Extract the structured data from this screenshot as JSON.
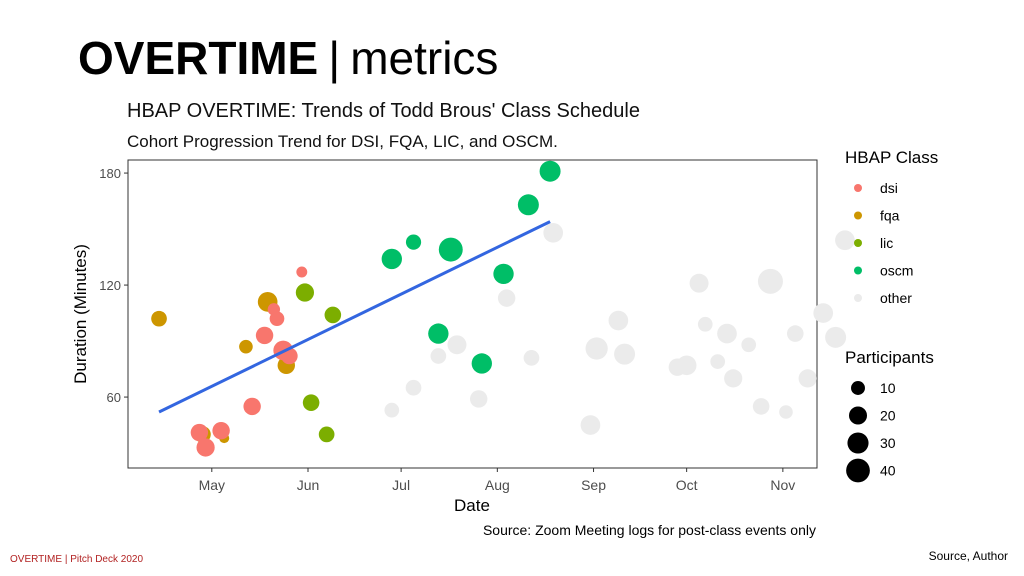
{
  "slide": {
    "title_bold": "OVERTIME",
    "title_separator": "|",
    "title_light": "metrics",
    "footer_left": "OVERTIME |  Pitch Deck 2020",
    "footer_right": "Source, Author"
  },
  "chart_data": {
    "type": "scatter",
    "title": "HBAP OVERTIME: Trends of Todd Brous' Class Schedule",
    "subtitle": "Cohort Progression Trend for DSI, FQA, LIC, and OSCM.",
    "xlabel": "Date",
    "ylabel": "Duration (Minutes)",
    "caption": "Source: Zoom Meeting logs for post-class events only",
    "x_tick_labels": [
      "May",
      "Jun",
      "Jul",
      "Aug",
      "Sep",
      "Oct",
      "Nov"
    ],
    "x_tick_values": [
      31,
      62,
      92,
      123,
      154,
      184,
      215
    ],
    "xlim": [
      4,
      226
    ],
    "y_ticks": [
      60,
      120,
      180
    ],
    "ylim": [
      22,
      187
    ],
    "colors": {
      "dsi": "#F8766D",
      "fqa": "#CD9600",
      "lic": "#7CAE00",
      "oscm": "#00BE67",
      "other": "#EBEBEB",
      "trend": "#3366E0"
    },
    "legend_class": {
      "title": "HBAP Class",
      "entries": [
        "dsi",
        "fqa",
        "lic",
        "oscm",
        "other"
      ]
    },
    "legend_size": {
      "title": "Participants",
      "entries": [
        10,
        20,
        30,
        40
      ]
    },
    "trend_line": {
      "x0": 14,
      "y0": 52,
      "x1": 140,
      "y1": 154
    },
    "series": [
      {
        "name": "dsi",
        "points": [
          {
            "x": 27,
            "y": 41,
            "p": 16
          },
          {
            "x": 29,
            "y": 33,
            "p": 18
          },
          {
            "x": 34,
            "y": 42,
            "p": 16
          },
          {
            "x": 44,
            "y": 55,
            "p": 16
          },
          {
            "x": 48,
            "y": 93,
            "p": 16
          },
          {
            "x": 51,
            "y": 107,
            "p": 6
          },
          {
            "x": 52,
            "y": 102,
            "p": 10
          },
          {
            "x": 54,
            "y": 85,
            "p": 22
          },
          {
            "x": 56,
            "y": 82,
            "p": 14
          },
          {
            "x": 60,
            "y": 127,
            "p": 4
          }
        ]
      },
      {
        "name": "fqa",
        "points": [
          {
            "x": 14,
            "y": 102,
            "p": 12
          },
          {
            "x": 28,
            "y": 40,
            "p": 14
          },
          {
            "x": 35,
            "y": 38,
            "p": 3
          },
          {
            "x": 42,
            "y": 87,
            "p": 8
          },
          {
            "x": 49,
            "y": 111,
            "p": 22
          },
          {
            "x": 55,
            "y": 77,
            "p": 16
          }
        ]
      },
      {
        "name": "lic",
        "points": [
          {
            "x": 61,
            "y": 116,
            "p": 18
          },
          {
            "x": 63,
            "y": 57,
            "p": 14
          },
          {
            "x": 68,
            "y": 40,
            "p": 12
          },
          {
            "x": 70,
            "y": 104,
            "p": 14
          }
        ]
      },
      {
        "name": "oscm",
        "points": [
          {
            "x": 89,
            "y": 134,
            "p": 24
          },
          {
            "x": 96,
            "y": 143,
            "p": 11
          },
          {
            "x": 104,
            "y": 94,
            "p": 24
          },
          {
            "x": 108,
            "y": 139,
            "p": 36
          },
          {
            "x": 118,
            "y": 78,
            "p": 24
          },
          {
            "x": 125,
            "y": 126,
            "p": 24
          },
          {
            "x": 133,
            "y": 163,
            "p": 26
          },
          {
            "x": 140,
            "y": 181,
            "p": 26
          }
        ]
      },
      {
        "name": "other",
        "points": [
          {
            "x": 89,
            "y": 53,
            "p": 10
          },
          {
            "x": 96,
            "y": 65,
            "p": 12
          },
          {
            "x": 104,
            "y": 82,
            "p": 12
          },
          {
            "x": 110,
            "y": 88,
            "p": 20
          },
          {
            "x": 117,
            "y": 59,
            "p": 16
          },
          {
            "x": 126,
            "y": 113,
            "p": 16
          },
          {
            "x": 134,
            "y": 81,
            "p": 12
          },
          {
            "x": 141,
            "y": 148,
            "p": 22
          },
          {
            "x": 153,
            "y": 45,
            "p": 22
          },
          {
            "x": 155,
            "y": 86,
            "p": 30
          },
          {
            "x": 162,
            "y": 101,
            "p": 22
          },
          {
            "x": 164,
            "y": 83,
            "p": 26
          },
          {
            "x": 181,
            "y": 76,
            "p": 16
          },
          {
            "x": 184,
            "y": 77,
            "p": 22
          },
          {
            "x": 188,
            "y": 121,
            "p": 20
          },
          {
            "x": 190,
            "y": 99,
            "p": 10
          },
          {
            "x": 194,
            "y": 79,
            "p": 10
          },
          {
            "x": 197,
            "y": 94,
            "p": 22
          },
          {
            "x": 199,
            "y": 70,
            "p": 18
          },
          {
            "x": 204,
            "y": 88,
            "p": 10
          },
          {
            "x": 208,
            "y": 55,
            "p": 14
          },
          {
            "x": 211,
            "y": 122,
            "p": 40
          },
          {
            "x": 216,
            "y": 52,
            "p": 8
          },
          {
            "x": 219,
            "y": 94,
            "p": 14
          },
          {
            "x": 223,
            "y": 70,
            "p": 18
          },
          {
            "x": 228,
            "y": 105,
            "p": 22
          },
          {
            "x": 232,
            "y": 92,
            "p": 26
          },
          {
            "x": 235,
            "y": 144,
            "p": 22
          }
        ]
      }
    ]
  }
}
